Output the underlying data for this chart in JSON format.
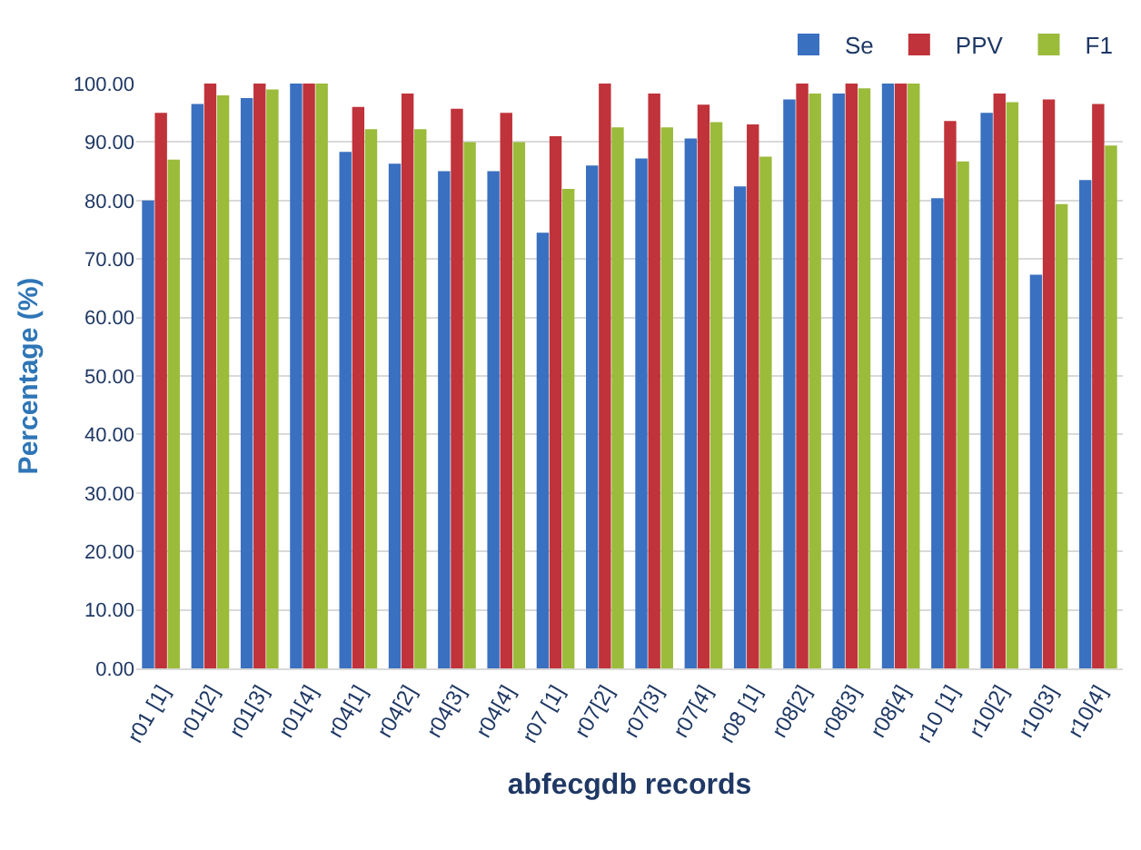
{
  "chart_data": {
    "type": "bar",
    "xlabel": "abfecgdb records",
    "ylabel": "Percentage (%)",
    "categories": [
      "r01 [1]",
      "r01[2]",
      "r01[3]",
      "r01[4]",
      "r04[1]",
      "r04[2]",
      "r04[3]",
      "r04[4]",
      "r07 [1]",
      "r07[2]",
      "r07[3]",
      "r07[4]",
      "r08 [1]",
      "r08[2]",
      "r08[3]",
      "r08[4]",
      "r10 [1]",
      "r10[2]",
      "r10[3]",
      "r10[4]"
    ],
    "series": [
      {
        "name": "Se",
        "color": "#3a70c0",
        "values": [
          80,
          96.5,
          97.5,
          100,
          88.3,
          86.3,
          85,
          85,
          74.5,
          86,
          87.2,
          90.6,
          82.4,
          97.3,
          98.3,
          100,
          80.4,
          95,
          67.3,
          83.5
        ]
      },
      {
        "name": "PPV",
        "color": "#c0333a",
        "values": [
          95,
          100,
          100,
          100,
          96,
          98.3,
          95.7,
          95,
          91,
          100,
          98.3,
          96.4,
          93,
          100,
          100,
          100,
          93.6,
          98.3,
          97.3,
          96.5
        ]
      },
      {
        "name": "F1",
        "color": "#9bbb3b",
        "values": [
          87,
          98,
          99,
          100,
          92.2,
          92.2,
          90,
          90,
          82,
          92.5,
          92.5,
          93.4,
          87.5,
          98.3,
          99.2,
          100,
          86.7,
          96.8,
          79.4,
          89.4
        ]
      }
    ],
    "ylim": [
      0,
      100
    ],
    "yticks": [
      {
        "value": 0,
        "label": "0.00"
      },
      {
        "value": 10,
        "label": "10.00"
      },
      {
        "value": 20,
        "label": "20.00"
      },
      {
        "value": 30,
        "label": "30.00"
      },
      {
        "value": 40,
        "label": "40.00"
      },
      {
        "value": 50,
        "label": "50.00"
      },
      {
        "value": 60,
        "label": "60.00"
      },
      {
        "value": 70,
        "label": "70.00"
      },
      {
        "value": 80,
        "label": "80.00"
      },
      {
        "value": 90,
        "label": "90.00"
      },
      {
        "value": 100,
        "label": "100.00"
      }
    ],
    "grid": "y",
    "legend": "top right"
  }
}
